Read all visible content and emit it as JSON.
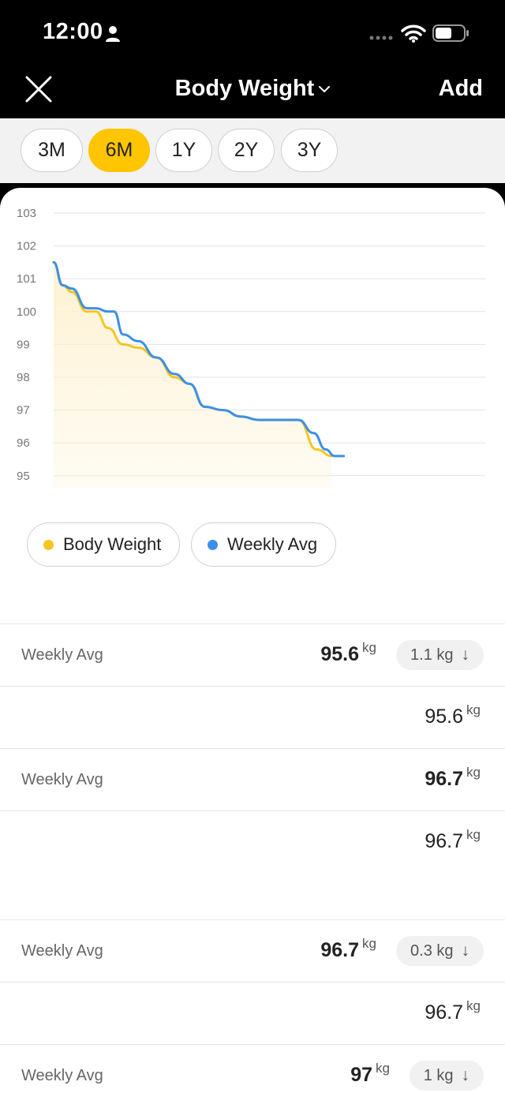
{
  "status_bar": {
    "time": "12:00"
  },
  "header": {
    "title": "Body Weight",
    "add_label": "Add"
  },
  "ranges": [
    {
      "label": "3M",
      "active": false
    },
    {
      "label": "6M",
      "active": true
    },
    {
      "label": "1Y",
      "active": false
    },
    {
      "label": "2Y",
      "active": false
    },
    {
      "label": "3Y",
      "active": false
    }
  ],
  "colors": {
    "accent": "#ffc500",
    "body_weight": "#f7c521",
    "weekly_avg": "#3b8fe8",
    "fill": "#fdf2d2"
  },
  "chart_data": {
    "type": "line",
    "y_ticks": [
      103,
      102,
      101,
      100,
      99,
      98,
      97,
      96,
      95
    ],
    "ylim": [
      95,
      103
    ],
    "grid": true,
    "series": [
      {
        "name": "Body Weight",
        "color": "#f7c521",
        "area": true,
        "x": [
          0,
          3,
          6,
          11,
          14,
          18,
          23,
          28,
          34,
          40,
          45,
          50,
          56,
          62,
          68,
          74,
          81,
          87,
          92
        ],
        "values": [
          101.5,
          100.8,
          100.6,
          100.0,
          100.0,
          99.5,
          99.0,
          98.9,
          98.6,
          98.0,
          97.8,
          97.1,
          97.0,
          96.8,
          96.7,
          96.7,
          96.7,
          95.8,
          95.6
        ]
      },
      {
        "name": "Weekly Avg",
        "color": "#3b8fe8",
        "area": false,
        "x": [
          0,
          3,
          6,
          11,
          14,
          18,
          20,
          23,
          28,
          34,
          40,
          45,
          50,
          56,
          62,
          68,
          74,
          81,
          86,
          90,
          93,
          96
        ],
        "values": [
          101.5,
          100.8,
          100.7,
          100.1,
          100.1,
          100.0,
          100.0,
          99.3,
          99.1,
          98.6,
          98.1,
          97.8,
          97.1,
          97.0,
          96.8,
          96.7,
          96.7,
          96.7,
          96.3,
          95.8,
          95.6,
          95.6
        ]
      }
    ]
  },
  "legend": [
    {
      "label": "Body Weight",
      "color": "#f7c521"
    },
    {
      "label": "Weekly Avg",
      "color": "#3b8fe8"
    }
  ],
  "rows": [
    {
      "label": "Weekly Avg",
      "value": "95.6",
      "unit": "kg",
      "bold": true,
      "delta": "1.1 kg",
      "arrow": "↓"
    },
    {
      "label": "",
      "value": "95.6",
      "unit": "kg",
      "bold": false
    },
    {
      "label": "Weekly Avg",
      "value": "96.7",
      "unit": "kg",
      "bold": true
    },
    {
      "label": "",
      "value": "96.7",
      "unit": "kg",
      "bold": false,
      "gap": true
    },
    {
      "label": "Weekly Avg",
      "value": "96.7",
      "unit": "kg",
      "bold": true,
      "delta": "0.3 kg",
      "arrow": "↓"
    },
    {
      "label": "",
      "value": "96.7",
      "unit": "kg",
      "bold": false
    },
    {
      "label": "Weekly Avg",
      "value": "97",
      "unit": "kg",
      "bold": true,
      "delta": "1 kg",
      "arrow": "↓"
    }
  ]
}
